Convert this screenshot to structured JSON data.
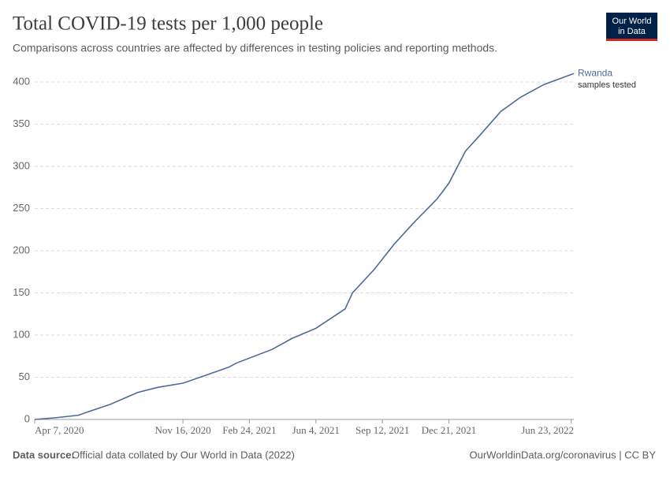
{
  "chart_data": {
    "type": "line",
    "title": "Total COVID-19 tests per 1,000 people",
    "subtitle": "Comparisons across countries are affected by differences in testing policies and reporting methods.",
    "x": [
      "2020-04-07",
      "2020-05-08",
      "2020-06-12",
      "2020-06-30",
      "2020-07-30",
      "2020-09-09",
      "2020-10-09",
      "2020-11-16",
      "2020-12-19",
      "2021-01-24",
      "2021-02-05",
      "2021-03-30",
      "2021-04-29",
      "2021-06-04",
      "2021-06-27",
      "2021-07-18",
      "2021-07-29",
      "2021-08-31",
      "2021-09-30",
      "2021-10-29",
      "2021-12-04",
      "2021-12-21",
      "2022-01-15",
      "2022-02-07",
      "2022-03-09",
      "2022-04-08",
      "2022-05-13",
      "2022-06-27"
    ],
    "series": [
      {
        "name": "Rwanda",
        "annotation": "samples tested",
        "color": "#4c6a9c",
        "values": [
          0,
          2,
          5,
          10,
          18,
          32,
          38,
          43,
          52,
          62,
          67,
          83,
          96,
          108,
          120,
          131,
          150,
          178,
          208,
          233,
          262,
          280,
          318,
          338,
          365,
          382,
          397,
          410
        ]
      }
    ],
    "xlim": [
      "2020-04-07",
      "2022-06-27"
    ],
    "xticks": [
      {
        "value": "2020-04-07",
        "label": "Apr 7, 2020"
      },
      {
        "value": "2020-11-16",
        "label": "Nov 16, 2020"
      },
      {
        "value": "2021-02-24",
        "label": "Feb 24, 2021"
      },
      {
        "value": "2021-06-04",
        "label": "Jun 4, 2021"
      },
      {
        "value": "2021-09-12",
        "label": "Sep 12, 2021"
      },
      {
        "value": "2021-12-21",
        "label": "Dec 21, 2021"
      },
      {
        "value": "2022-06-23",
        "label": "Jun 23, 2022"
      }
    ],
    "ylim": [
      0,
      400
    ],
    "yticks": [
      0,
      50,
      100,
      150,
      200,
      250,
      300,
      350,
      400
    ],
    "grid": true,
    "source_label": "Data source:",
    "source": "Official data collated by Our World in Data (2022)",
    "footer_right": "OurWorldinData.org/coronavirus | CC BY",
    "logo": [
      "Our World",
      "in Data"
    ]
  }
}
